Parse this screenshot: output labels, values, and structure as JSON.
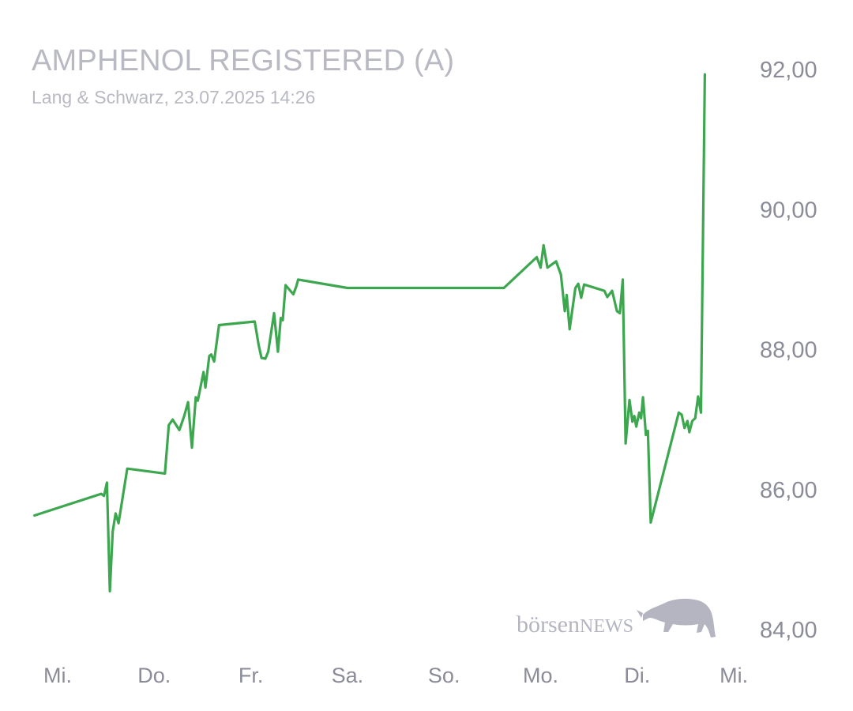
{
  "header": {
    "title": "AMPHENOL REGISTERED (A)",
    "subtitle": "Lang & Schwarz, 23.07.2025 14:26"
  },
  "brand": {
    "logo_text_1": "börsen",
    "logo_text_2": "NEWS",
    "icon": "bull-icon"
  },
  "colors": {
    "line": "#3da74f",
    "tick_text": "#8b8c98",
    "title_text": "#b8b9c2",
    "logo": "#b4b5c0"
  },
  "chart_data": {
    "type": "line",
    "title": "AMPHENOL REGISTERED (A)",
    "subtitle": "Lang & Schwarz, 23.07.2025 14:26",
    "xlabel": "",
    "ylabel": "",
    "ylim": [
      84,
      92
    ],
    "xlim": [
      0,
      7.4
    ],
    "y_ticks": [
      92,
      90,
      88,
      86,
      84
    ],
    "y_tick_labels": [
      "92,00",
      "90,00",
      "88,00",
      "86,00",
      "84,00"
    ],
    "x_ticks": [
      0,
      1,
      2,
      3,
      4,
      5,
      6,
      7
    ],
    "x_tick_labels": [
      "Mi.",
      "Do.",
      "Fr.",
      "Sa.",
      "So.",
      "Mo.",
      "Di.",
      "Mi."
    ],
    "grid": false,
    "legend": "none",
    "series": [
      {
        "values": [
          [
            0.03,
            85.63
          ],
          [
            0.72,
            85.94
          ],
          [
            0.75,
            85.91
          ],
          [
            0.78,
            86.1
          ],
          [
            0.81,
            84.55
          ],
          [
            0.84,
            85.4
          ],
          [
            0.87,
            85.66
          ],
          [
            0.9,
            85.52
          ],
          [
            0.99,
            86.3
          ],
          [
            1.38,
            86.23
          ],
          [
            1.42,
            86.92
          ],
          [
            1.46,
            87.0
          ],
          [
            1.53,
            86.85
          ],
          [
            1.58,
            87.05
          ],
          [
            1.62,
            87.25
          ],
          [
            1.66,
            86.6
          ],
          [
            1.7,
            87.32
          ],
          [
            1.72,
            87.27
          ],
          [
            1.78,
            87.68
          ],
          [
            1.8,
            87.46
          ],
          [
            1.84,
            87.91
          ],
          [
            1.86,
            87.93
          ],
          [
            1.89,
            87.83
          ],
          [
            1.94,
            88.35
          ],
          [
            2.31,
            88.4
          ],
          [
            2.35,
            88.07
          ],
          [
            2.38,
            87.88
          ],
          [
            2.42,
            87.87
          ],
          [
            2.45,
            87.97
          ],
          [
            2.51,
            88.52
          ],
          [
            2.55,
            87.97
          ],
          [
            2.58,
            88.45
          ],
          [
            2.6,
            88.42
          ],
          [
            2.63,
            88.92
          ],
          [
            2.71,
            88.79
          ],
          [
            2.74,
            88.9
          ],
          [
            2.76,
            89.0
          ],
          [
            3.27,
            88.88
          ],
          [
            4.89,
            88.88
          ],
          [
            5.23,
            89.32
          ],
          [
            5.27,
            89.17
          ],
          [
            5.3,
            89.49
          ],
          [
            5.34,
            89.17
          ],
          [
            5.43,
            89.26
          ],
          [
            5.48,
            89.07
          ],
          [
            5.52,
            88.55
          ],
          [
            5.54,
            88.78
          ],
          [
            5.57,
            88.29
          ],
          [
            5.63,
            88.88
          ],
          [
            5.66,
            88.94
          ],
          [
            5.69,
            88.74
          ],
          [
            5.72,
            88.93
          ],
          [
            5.93,
            88.84
          ],
          [
            5.96,
            88.75
          ],
          [
            6.01,
            88.84
          ],
          [
            6.06,
            88.55
          ],
          [
            6.09,
            88.52
          ],
          [
            6.12,
            89.0
          ],
          [
            6.15,
            86.66
          ],
          [
            6.19,
            87.28
          ],
          [
            6.22,
            86.97
          ],
          [
            6.24,
            87.05
          ],
          [
            6.26,
            86.9
          ],
          [
            6.29,
            87.1
          ],
          [
            6.31,
            87.02
          ],
          [
            6.33,
            87.32
          ],
          [
            6.36,
            86.78
          ],
          [
            6.38,
            86.84
          ],
          [
            6.41,
            85.53
          ],
          [
            6.7,
            87.1
          ],
          [
            6.73,
            87.07
          ],
          [
            6.76,
            86.88
          ],
          [
            6.79,
            86.98
          ],
          [
            6.81,
            86.82
          ],
          [
            6.84,
            86.98
          ],
          [
            6.87,
            87.02
          ],
          [
            6.9,
            87.33
          ],
          [
            6.93,
            87.1
          ],
          [
            6.97,
            91.93
          ]
        ]
      }
    ]
  }
}
